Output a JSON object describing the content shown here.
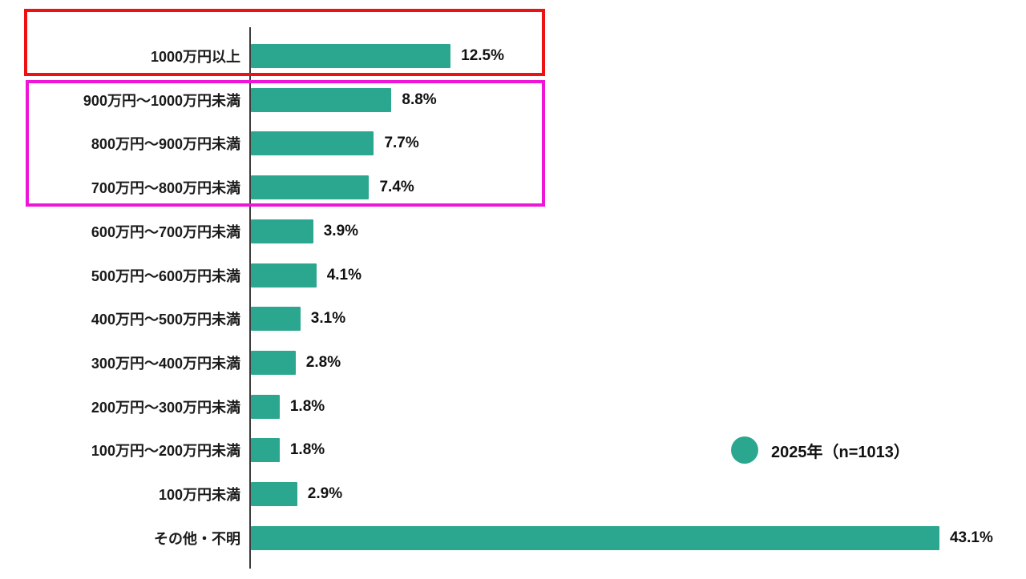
{
  "chart_data": {
    "type": "bar",
    "orientation": "horizontal",
    "title": "",
    "xlabel": "",
    "ylabel": "",
    "xlim": [
      0,
      48
    ],
    "grid": false,
    "bar_color": "#2aa78e",
    "categories": [
      "1000万円以上",
      "900万円～1000万円未満",
      "800万円～900万円未満",
      "700万円～800万円未満",
      "600万円～700万円未満",
      "500万円～600万円未満",
      "400万円～500万円未満",
      "300万円～400万円未満",
      "200万円～300万円未満",
      "100万円～200万円未満",
      "100万円未満",
      "その他・不明"
    ],
    "values": [
      12.5,
      8.8,
      7.7,
      7.4,
      3.9,
      4.1,
      3.1,
      2.8,
      1.8,
      1.8,
      2.9,
      43.1
    ],
    "value_labels": [
      "12.5%",
      "8.8%",
      "7.7%",
      "7.4%",
      "3.9%",
      "4.1%",
      "3.1%",
      "2.8%",
      "1.8%",
      "1.8%",
      "2.9%",
      "43.1%"
    ],
    "legend": {
      "label": "2025年（n=1013）",
      "marker_color": "#2aa78e",
      "position": "right-middle"
    },
    "annotations": [
      {
        "type": "highlight-box",
        "color": "#ee1111",
        "rows": [
          "1000万円以上"
        ]
      },
      {
        "type": "highlight-box",
        "color": "#ee15d8",
        "rows": [
          "900万円～1000万円未満",
          "800万円～900万円未満",
          "700万円～800万円未満"
        ]
      }
    ]
  }
}
